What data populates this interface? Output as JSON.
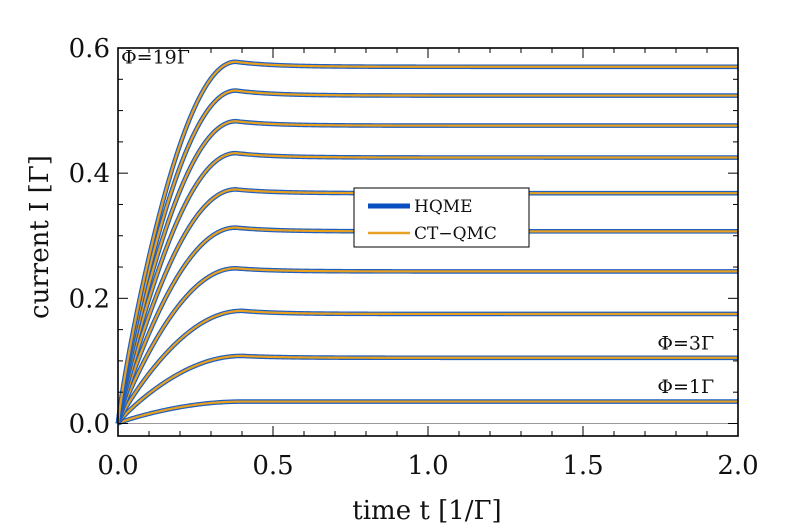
{
  "chart_data": {
    "type": "line",
    "title": "",
    "xlabel": "time t [1/Γ]",
    "ylabel": "current I [Γ]",
    "xlim": [
      0.0,
      2.0
    ],
    "ylim": [
      -0.02,
      0.6
    ],
    "xticks": [
      0.0,
      0.5,
      1.0,
      1.5,
      2.0
    ],
    "xtick_labels": [
      "0.0",
      "0.5",
      "1.0",
      "1.5",
      "2.0"
    ],
    "yticks": [
      0.0,
      0.2,
      0.4,
      0.6
    ],
    "ytick_labels": [
      "0.0",
      "0.2",
      "0.4",
      "0.6"
    ],
    "grid": false,
    "legend_position": "center",
    "legend": [
      {
        "label": "HQME",
        "color": "#0a4fc0"
      },
      {
        "label": "CT−QMC",
        "color": "#e8a020"
      }
    ],
    "annotations": [
      {
        "text": "Φ=19Γ",
        "x": 0.01,
        "y": 0.585
      },
      {
        "text": "Φ=3Γ",
        "x": 1.74,
        "y": 0.128
      },
      {
        "text": "Φ=1Γ",
        "x": 1.74,
        "y": 0.058
      }
    ],
    "colors": {
      "hqme": "#1f5fbf",
      "ctqmc": "#e8a020",
      "baseline": "#999999"
    },
    "series": [
      {
        "steady": 0.035,
        "peak": 0.035,
        "t_peak": 0.4
      },
      {
        "steady": 0.105,
        "peak": 0.108,
        "t_peak": 0.4
      },
      {
        "steady": 0.175,
        "peak": 0.18,
        "t_peak": 0.4
      },
      {
        "steady": 0.243,
        "peak": 0.248,
        "t_peak": 0.38
      },
      {
        "steady": 0.307,
        "peak": 0.313,
        "t_peak": 0.38
      },
      {
        "steady": 0.368,
        "peak": 0.374,
        "t_peak": 0.38
      },
      {
        "steady": 0.425,
        "peak": 0.432,
        "t_peak": 0.38
      },
      {
        "steady": 0.476,
        "peak": 0.483,
        "t_peak": 0.38
      },
      {
        "steady": 0.524,
        "peak": 0.532,
        "t_peak": 0.38
      },
      {
        "steady": 0.57,
        "peak": 0.578,
        "t_peak": 0.38
      }
    ]
  }
}
